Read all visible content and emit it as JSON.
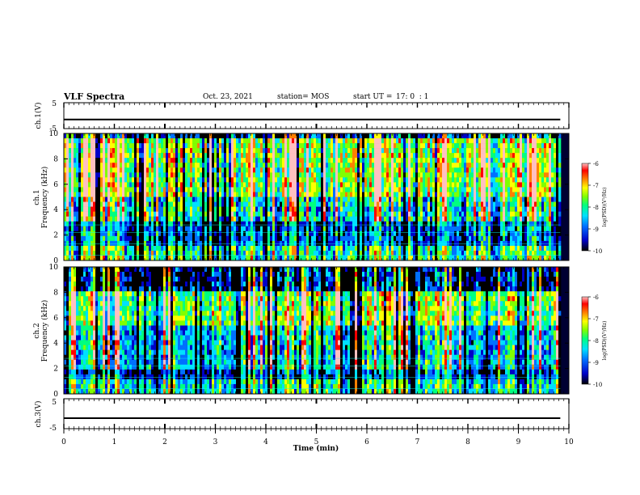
{
  "header": {
    "title": "VLF Spectra",
    "date": "Oct. 23, 2021",
    "station": "station= MOS",
    "start_label": "start UT =",
    "start_time": "17: 0  : 1"
  },
  "colors": {
    "spectrogram_scale": [
      "#000000",
      "#0000c8",
      "#0070ff",
      "#00e0ff",
      "#00ff80",
      "#80ff00",
      "#ffff00",
      "#ff8000",
      "#ff0000",
      "#ffc0c0"
    ],
    "trace": "#000000"
  },
  "chart_data": [
    {
      "type": "line",
      "panel": "ch1_voltage",
      "ylabel": "ch.1(V)",
      "ylim": [
        -5,
        5
      ],
      "yticks": [
        "5",
        "-5"
      ],
      "series": [
        {
          "x": [
            0,
            9.83
          ],
          "values": [
            -1.5,
            -1.5
          ]
        }
      ]
    },
    {
      "type": "heatmap",
      "panel": "ch1_spectrogram",
      "ylabel": "ch.1\nFrequency (kHz)",
      "ylim": [
        0,
        10
      ],
      "yticks": [
        "0",
        "2",
        "4",
        "6",
        "8",
        "10"
      ],
      "xlim": [
        0,
        9.83
      ],
      "color_scale": {
        "label": "log(PSD)(V²/Hz)",
        "min": -10,
        "max": -6,
        "ticks": [
          "-6",
          "-7",
          "-8",
          "-9",
          "-10"
        ]
      },
      "description_values": {
        "strong_band_kHz": [
          5.0,
          9.5
        ],
        "low_band_kHz": [
          0.0,
          1.0
        ],
        "quiet_band_kHz": [
          1.0,
          3.0
        ]
      }
    },
    {
      "type": "heatmap",
      "panel": "ch2_spectrogram",
      "ylabel": "ch.2\nFrequency (kHz)",
      "ylim": [
        0,
        10
      ],
      "yticks": [
        "0",
        "2",
        "4",
        "6",
        "8",
        "10"
      ],
      "xlim": [
        0,
        9.83
      ],
      "color_scale": {
        "label": "log(PSD)(V²/Hz)",
        "min": -10,
        "max": -6,
        "ticks": [
          "-6",
          "-7",
          "-8",
          "-9",
          "-10"
        ]
      },
      "description_values": {
        "strong_band_kHz": [
          5.5,
          8.0
        ],
        "low_band_kHz": [
          0.0,
          1.0
        ],
        "quiet_band_kHz": [
          1.0,
          2.0
        ]
      }
    },
    {
      "type": "line",
      "panel": "ch3_voltage",
      "ylabel": "ch.3(V)",
      "ylim": [
        -5,
        5
      ],
      "yticks": [
        "5",
        "-5"
      ],
      "series": [
        {
          "x": [
            0,
            9.83
          ],
          "values": [
            -1.5,
            -1.5
          ]
        }
      ]
    }
  ],
  "xaxis": {
    "label": "Time (min)",
    "ticks": [
      "0",
      "1",
      "2",
      "3",
      "4",
      "5",
      "6",
      "7",
      "8",
      "9",
      "10"
    ],
    "xlim": [
      0,
      10
    ]
  }
}
